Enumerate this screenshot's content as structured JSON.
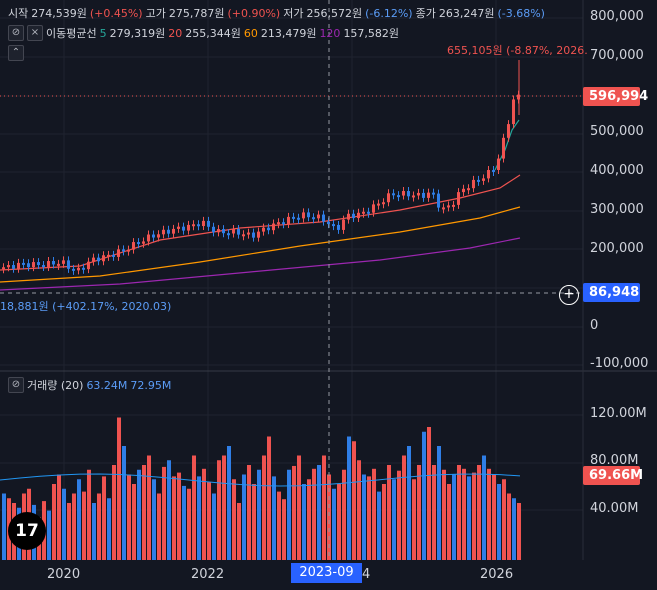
{
  "legend": {
    "open_label": "시작",
    "open_value": "274,539원",
    "open_pct": "(+0.45%)",
    "high_label": "고가",
    "high_value": "275,787원",
    "high_pct": "(+0.90%)",
    "low_label": "저가",
    "low_value": "256,572원",
    "low_pct": "(-6.12%)",
    "close_label": "종가",
    "close_value": "263,247원",
    "close_pct": "(-3.68%)"
  },
  "ma_legend": {
    "label": "이동평균선",
    "items": [
      {
        "period": "5",
        "value": "279,319원",
        "color": "#26a69a"
      },
      {
        "period": "20",
        "value": "255,344원",
        "color": "#ef5350"
      },
      {
        "period": "60",
        "value": "213,479원",
        "color": "#ff9800"
      },
      {
        "period": "120",
        "value": "157,582원",
        "color": "#9c27b0"
      }
    ]
  },
  "annotations": {
    "high": "655,105원 (-8.87%, 2026.",
    "low": "18,881원 (+402.17%, 2020.03)"
  },
  "price_axis": [
    "800,000",
    "700,000",
    "600,000",
    "500,000",
    "400,000",
    "300,000",
    "200,000",
    "100,000",
    "0",
    "-100,000"
  ],
  "current_price": "596,994",
  "crosshair_price": "86,948",
  "volume_panel": {
    "title": "거래량 (20)",
    "v1": "63.24M",
    "v2": "72.95M",
    "axis": [
      "120.00M",
      "80.00M",
      "40.00M"
    ],
    "current": "69.66M"
  },
  "time_axis": [
    "2020",
    "2022",
    "4",
    "2026"
  ],
  "crosshair_time": "2023-09",
  "colors": {
    "up": "#ef5350",
    "down": "#2f7ee6",
    "bg": "#131722"
  },
  "icons": {
    "expand": "eye-slash-icon",
    "close": "close-icon",
    "collapse": "chevron-up-icon",
    "logo": "tradingview-logo-icon"
  }
}
